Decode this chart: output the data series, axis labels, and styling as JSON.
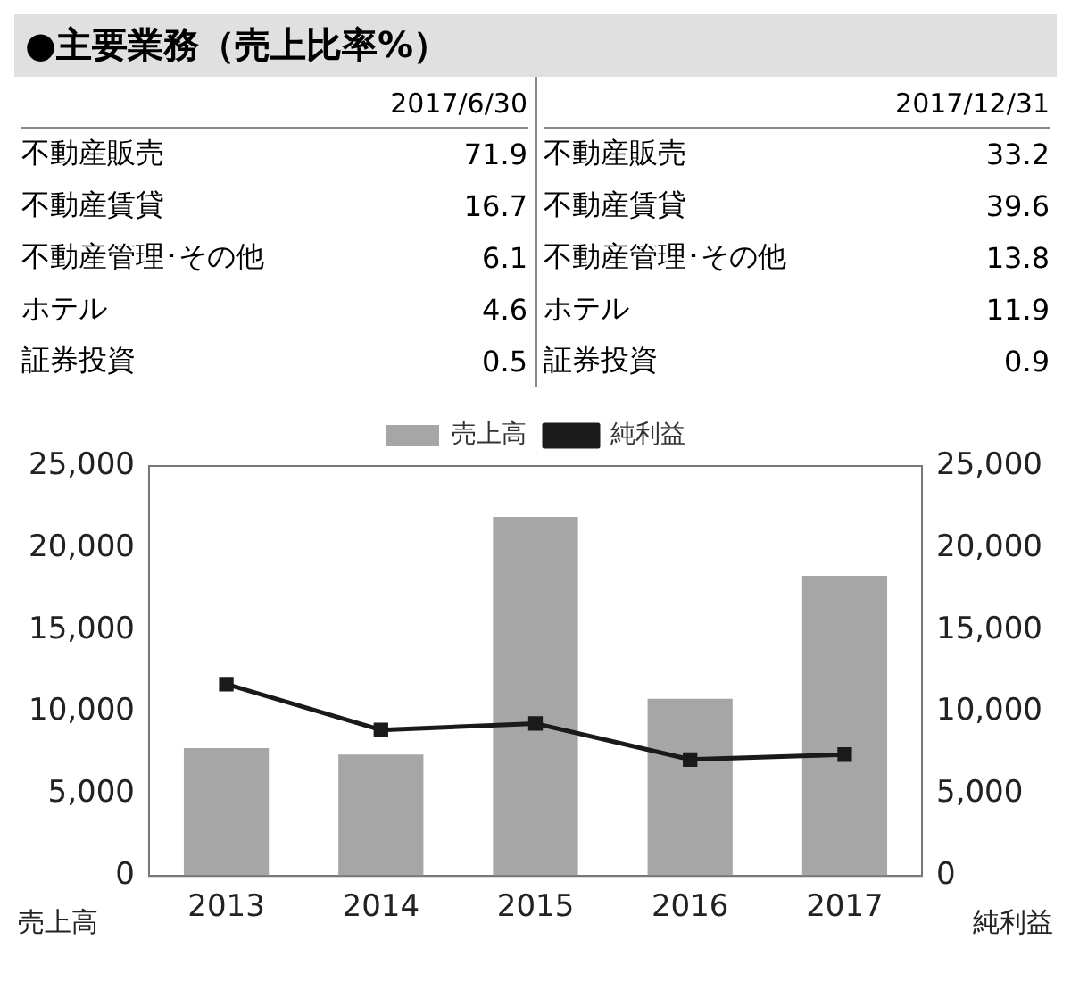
{
  "chart_data": [
    {
      "type": "other",
      "title": "●主要業務（売上比率%）",
      "categories": [
        "不動産販売",
        "不動産賃貸",
        "不動産管理･その他",
        "ホテル",
        "証券投資"
      ],
      "data_labels": true,
      "series": [
        {
          "name": "2017/6/30",
          "values": [
            71.9,
            16.7,
            6.1,
            4.6,
            0.5
          ]
        },
        {
          "name": "2017/12/31",
          "values": [
            33.2,
            39.6,
            13.8,
            11.9,
            0.9
          ]
        }
      ]
    },
    {
      "type": "bar",
      "categories": [
        "2013",
        "2014",
        "2015",
        "2016",
        "2017"
      ],
      "ylabel": "売上高",
      "y2label": "純利益",
      "ylim": [
        0,
        25000
      ],
      "yticks": [
        0,
        {
          "value": 5000,
          "label": "5,000"
        },
        {
          "value": 10000,
          "label": "10,000"
        },
        {
          "value": 15000,
          "label": "15,000"
        },
        {
          "value": 20000,
          "label": "20,000"
        },
        {
          "value": 25000,
          "label": "25,000"
        }
      ],
      "y2lim": [
        0,
        25000
      ],
      "y2ticks": [
        0,
        {
          "value": 5000,
          "label": "5,000"
        },
        {
          "value": 10000,
          "label": "10,000"
        },
        {
          "value": 15000,
          "label": "15,000"
        },
        {
          "value": 20000,
          "label": "20,000"
        },
        {
          "value": 25000,
          "label": "25,000"
        }
      ],
      "legend": "top",
      "grid": false,
      "series": [
        {
          "name": "売上高",
          "type": "bar",
          "color": "#a6a6a6",
          "values": [
            7800,
            7400,
            21900,
            10800,
            18300
          ]
        },
        {
          "name": "純利益",
          "type": "line",
          "color": "#1a1a1a",
          "axis": "y2",
          "marker": "square",
          "line_style": "solid",
          "values": [
            11700,
            8900,
            9300,
            7100,
            7400
          ]
        }
      ]
    }
  ]
}
